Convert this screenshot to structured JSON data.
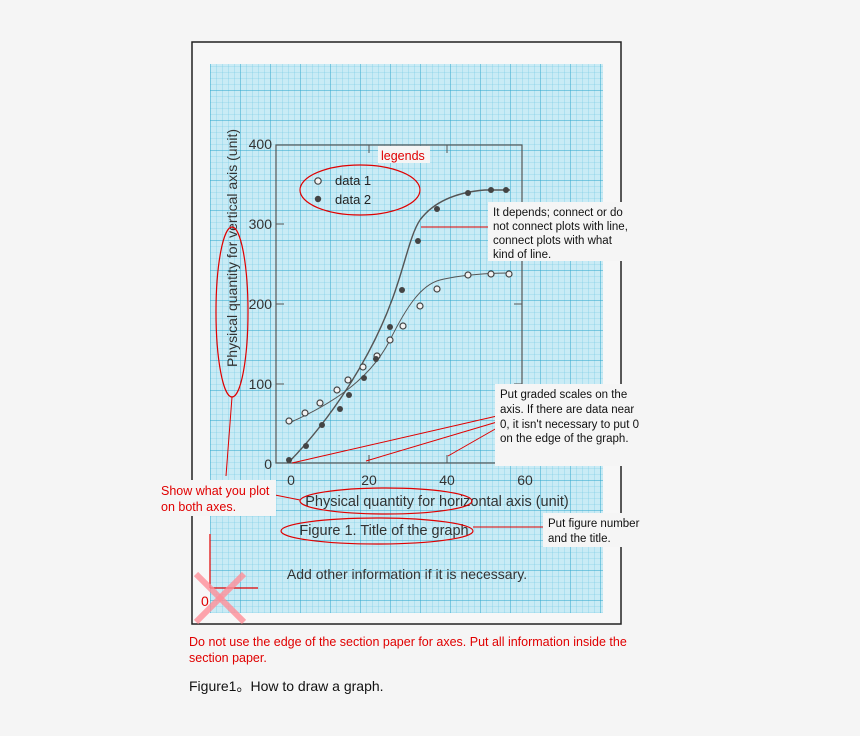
{
  "graph": {
    "y_axis_label": "Physical quantity for vertical axis (unit)",
    "x_axis_label": "Physical quantity for horizontal axis (unit)",
    "figure_title": "Figure 1. Title of the graph",
    "other_info": "Add other information if it is necessary.",
    "legend": {
      "series_1": "data 1",
      "series_2": "data 2"
    },
    "y_ticks": [
      "400",
      "300",
      "200",
      "100",
      "0"
    ],
    "x_ticks": [
      "0",
      "20",
      "40",
      "60"
    ]
  },
  "annotations": {
    "legends": "legends",
    "connect_line_1": "It depends; connect or do",
    "connect_line_2": "not connect plots with line,",
    "connect_line_3": "connect plots with what",
    "connect_line_4": "kind of line.",
    "scales_line_1": "Put graded scales on the",
    "scales_line_2": "axis. If there are data near",
    "scales_line_3": "0, it isn't necessary to put 0",
    "scales_line_4": "on the edge  of the graph.",
    "show_plot_line_1": "Show what you plot",
    "show_plot_line_2": "on both axes.",
    "figure_number_line_1": "Put figure number",
    "figure_number_line_2": "and the title.",
    "wrong_origin": "0"
  },
  "bottom_note": "Do not use the edge of the section paper for axes. Put all information inside the section paper.",
  "caption": "Figure1。How to draw a graph.",
  "colors": {
    "grid": "#3fb4d6",
    "paper": "#c9ebf5",
    "annotation": "#e00000",
    "data_1": "#555555",
    "data_2": "#555555"
  }
}
